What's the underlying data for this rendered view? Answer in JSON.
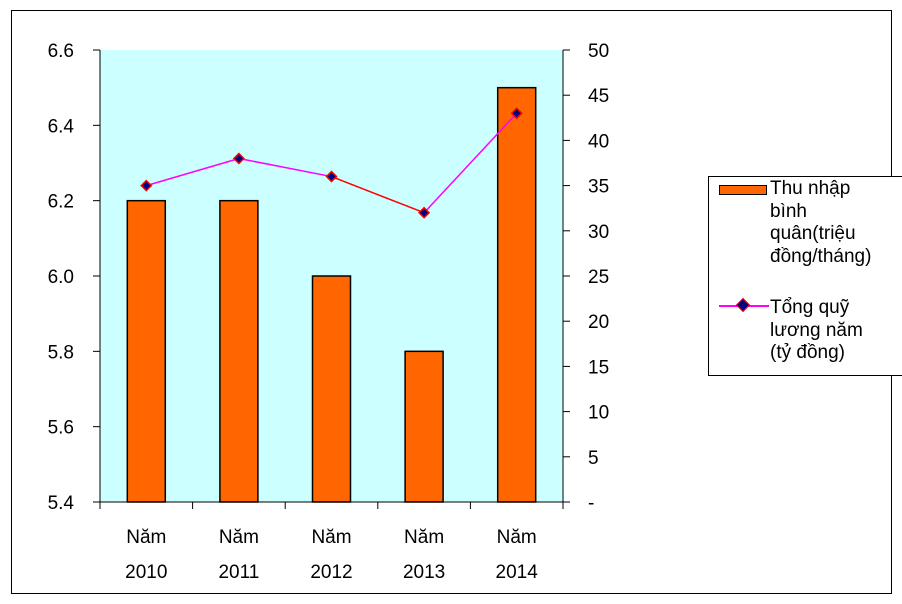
{
  "chart_data": {
    "type": "bar",
    "categories": [
      "Năm 2010",
      "Năm 2011",
      "Năm 2012",
      "Năm 2013",
      "Năm 2014"
    ],
    "category_lines": [
      [
        "Năm",
        "2010"
      ],
      [
        "Năm",
        "2011"
      ],
      [
        "Năm",
        "2012"
      ],
      [
        "Năm",
        "2013"
      ],
      [
        "Năm",
        "2014"
      ]
    ],
    "series": [
      {
        "name": "Thu nhập bình quân(triệu đồng/tháng)",
        "type": "bar",
        "axis": "left",
        "values": [
          6.2,
          6.2,
          6.0,
          5.8,
          6.5
        ],
        "color": "#ff6600"
      },
      {
        "name": "Tổng quỹ lương năm (tỷ đồng)",
        "type": "line",
        "axis": "right",
        "values": [
          35,
          38,
          36,
          32,
          43
        ],
        "color": "#ff00ff",
        "marker_color": "#000080"
      }
    ],
    "y_left": {
      "ylim": [
        5.4,
        6.6
      ],
      "ticks": [
        "5.4",
        "5.6",
        "5.8",
        "6.0",
        "6.2",
        "6.4",
        "6.6"
      ]
    },
    "y_right": {
      "ylim": [
        0,
        50
      ],
      "ticks": [
        "-",
        "5",
        "10",
        "15",
        "20",
        "25",
        "30",
        "35",
        "40",
        "45",
        "50"
      ]
    },
    "plot_background": "#ccffff",
    "grid": false,
    "legend_position": "right"
  },
  "legend": {
    "bar_label_lines": [
      "Thu nhập",
      "bình",
      "quân(triệu",
      "đồng/tháng)"
    ],
    "line_label_lines": [
      "Tổng quỹ",
      "lương năm",
      "(tỷ đồng)"
    ]
  }
}
